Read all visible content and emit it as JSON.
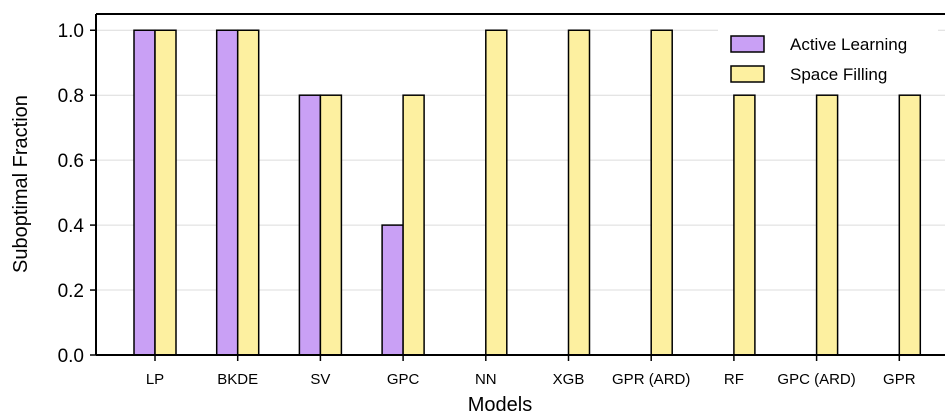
{
  "chart_data": {
    "type": "bar",
    "title": "",
    "xlabel": "Models",
    "ylabel": "Suboptimal Fraction",
    "ylim": [
      0,
      1.05
    ],
    "yticks": [
      "0.0",
      "0.2",
      "0.4",
      "0.6",
      "0.8",
      "1.0"
    ],
    "categories": [
      "LP",
      "BKDE",
      "SV",
      "GPC",
      "NN",
      "XGB",
      "GPR (ARD)",
      "RF",
      "GPC (ARD)",
      "GPR"
    ],
    "series": [
      {
        "name": "Active Learning",
        "color": "#c9a0f5",
        "values": [
          1.0,
          1.0,
          0.8,
          0.4,
          0,
          0,
          0,
          0,
          0,
          0
        ]
      },
      {
        "name": "Space Filling",
        "color": "#fdf0a0",
        "values": [
          1.0,
          1.0,
          0.8,
          0.8,
          1.0,
          1.0,
          1.0,
          0.8,
          0.8,
          0.8
        ]
      }
    ],
    "grid": "y",
    "legend": "top-right"
  }
}
